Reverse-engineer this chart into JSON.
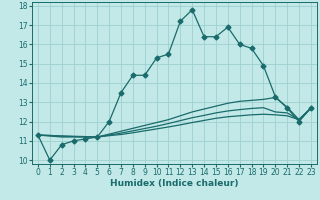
{
  "xlabel": "Humidex (Indice chaleur)",
  "bg_color": "#c2e8e8",
  "line_color": "#1a6b6b",
  "grid_color": "#9fd0d0",
  "xlim": [
    -0.5,
    23.5
  ],
  "ylim": [
    9.8,
    18.2
  ],
  "yticks": [
    10,
    11,
    12,
    13,
    14,
    15,
    16,
    17,
    18
  ],
  "xticks": [
    0,
    1,
    2,
    3,
    4,
    5,
    6,
    7,
    8,
    9,
    10,
    11,
    12,
    13,
    14,
    15,
    16,
    17,
    18,
    19,
    20,
    21,
    22,
    23
  ],
  "line1_x": [
    0,
    1,
    2,
    3,
    4,
    5,
    6,
    7,
    8,
    9,
    10,
    11,
    12,
    13,
    14,
    15,
    16,
    17,
    18,
    19,
    20,
    21,
    22,
    23
  ],
  "line1_y": [
    11.3,
    10.0,
    10.8,
    11.0,
    11.1,
    11.2,
    12.0,
    13.5,
    14.4,
    14.4,
    15.3,
    15.5,
    17.2,
    17.8,
    16.4,
    16.4,
    16.9,
    16.0,
    15.8,
    14.9,
    13.3,
    12.7,
    12.0,
    12.7
  ],
  "line2_x": [
    0,
    1,
    2,
    3,
    4,
    5,
    6,
    7,
    8,
    9,
    10,
    11,
    12,
    13,
    14,
    15,
    16,
    17,
    18,
    19,
    20,
    21,
    22,
    23
  ],
  "line2_y": [
    11.3,
    11.25,
    11.2,
    11.2,
    11.2,
    11.2,
    11.35,
    11.5,
    11.65,
    11.8,
    11.95,
    12.1,
    12.3,
    12.5,
    12.65,
    12.8,
    12.95,
    13.05,
    13.1,
    13.15,
    13.25,
    12.75,
    12.1,
    12.7
  ],
  "line3_x": [
    0,
    1,
    2,
    3,
    4,
    5,
    6,
    7,
    8,
    9,
    10,
    11,
    12,
    13,
    14,
    15,
    16,
    17,
    18,
    19,
    20,
    21,
    22,
    23
  ],
  "line3_y": [
    11.3,
    11.28,
    11.25,
    11.23,
    11.22,
    11.2,
    11.3,
    11.4,
    11.52,
    11.64,
    11.76,
    11.9,
    12.05,
    12.2,
    12.32,
    12.45,
    12.55,
    12.62,
    12.68,
    12.72,
    12.5,
    12.45,
    12.1,
    12.7
  ],
  "line4_x": [
    0,
    1,
    2,
    3,
    4,
    5,
    6,
    7,
    8,
    9,
    10,
    11,
    12,
    13,
    14,
    15,
    16,
    17,
    18,
    19,
    20,
    21,
    22,
    23
  ],
  "line4_y": [
    11.3,
    11.28,
    11.25,
    11.23,
    11.22,
    11.2,
    11.27,
    11.33,
    11.42,
    11.52,
    11.62,
    11.72,
    11.83,
    11.95,
    12.06,
    12.17,
    12.25,
    12.3,
    12.35,
    12.38,
    12.35,
    12.3,
    12.1,
    12.7
  ],
  "marker_size": 2.5,
  "linewidth": 0.9,
  "xlabel_fontsize": 6.5,
  "tick_fontsize": 5.5
}
